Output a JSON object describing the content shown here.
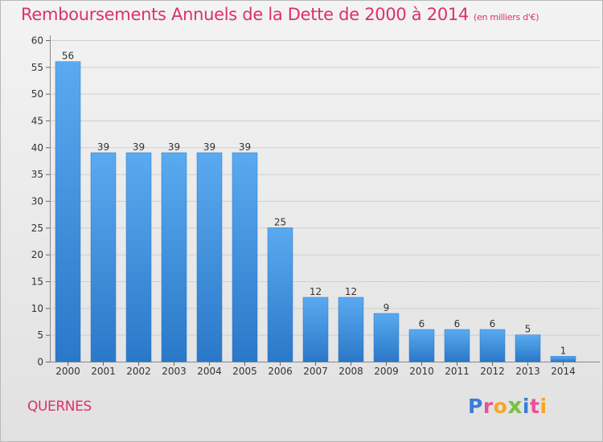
{
  "header": {
    "title": "Remboursements Annuels de la Dette de 2000 à 2014",
    "unit_note": "(en milliers d'€)"
  },
  "footer": {
    "commune": "QUERNES",
    "brand": "Proxiti",
    "brand_letters": [
      {
        "char": "P",
        "color": "#3a7dd6"
      },
      {
        "char": "r",
        "color": "#e94f9a"
      },
      {
        "char": "o",
        "color": "#f5a623"
      },
      {
        "char": "x",
        "color": "#7ac142"
      },
      {
        "char": "i",
        "color": "#3a7dd6"
      },
      {
        "char": "t",
        "color": "#e94f9a"
      },
      {
        "char": "i",
        "color": "#f5a623"
      }
    ]
  },
  "chart_data": {
    "type": "bar",
    "title": "Remboursements Annuels de la Dette de 2000 à 2014",
    "subtitle": "(en milliers d'€)",
    "xlabel": "",
    "ylabel": "",
    "categories": [
      "2000",
      "2001",
      "2002",
      "2003",
      "2004",
      "2005",
      "2006",
      "2007",
      "2008",
      "2009",
      "2010",
      "2011",
      "2012",
      "2013",
      "2014"
    ],
    "values": [
      56,
      39,
      39,
      39,
      39,
      39,
      25,
      12,
      12,
      9,
      6,
      6,
      6,
      5,
      1
    ],
    "ylim": [
      0,
      60
    ],
    "yticks": [
      0,
      5,
      10,
      15,
      20,
      25,
      30,
      35,
      40,
      45,
      50,
      55,
      60
    ],
    "grid": true,
    "data_labels": true,
    "bar_color": "#3a8ee0"
  }
}
